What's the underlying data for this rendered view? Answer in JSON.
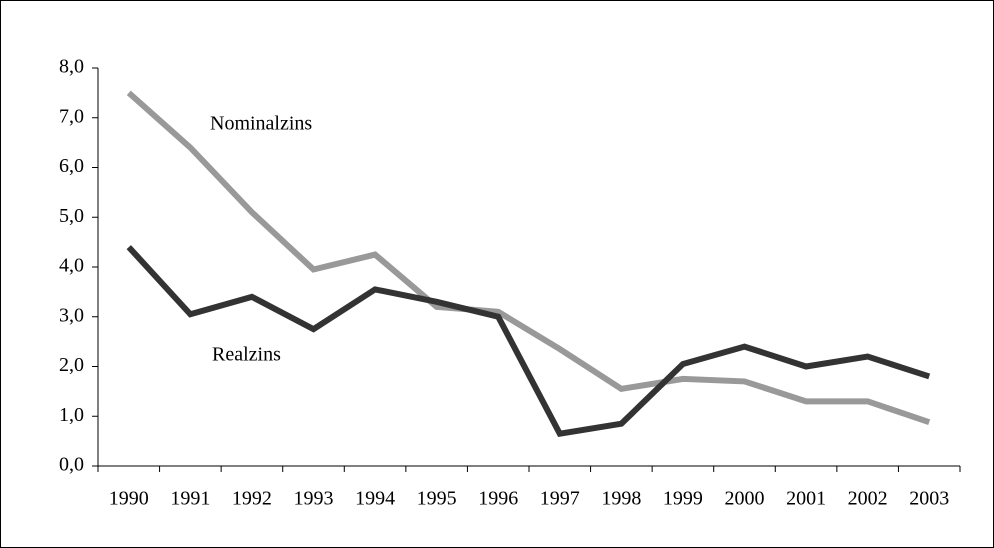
{
  "chart_data": {
    "type": "line",
    "categories": [
      "1990",
      "1991",
      "1992",
      "1993",
      "1994",
      "1995",
      "1996",
      "1997",
      "1998",
      "1999",
      "2000",
      "2001",
      "2002",
      "2003"
    ],
    "series": [
      {
        "name": "Nominalzins",
        "color": "#999999",
        "values": [
          7.5,
          6.4,
          5.1,
          3.95,
          4.25,
          3.2,
          3.1,
          2.35,
          1.55,
          1.75,
          1.7,
          1.3,
          1.3,
          0.88
        ]
      },
      {
        "name": "Realzins",
        "color": "#333333",
        "values": [
          4.4,
          3.05,
          3.4,
          2.75,
          3.55,
          3.3,
          3.0,
          0.65,
          0.85,
          2.05,
          2.4,
          2.0,
          2.2,
          1.8
        ]
      }
    ],
    "ylim": [
      0,
      8
    ],
    "yticks": [
      {
        "value": 0,
        "label": "0,0"
      },
      {
        "value": 1,
        "label": "1,0"
      },
      {
        "value": 2,
        "label": "2,0"
      },
      {
        "value": 3,
        "label": "3,0"
      },
      {
        "value": 4,
        "label": "4,0"
      },
      {
        "value": 5,
        "label": "5,0"
      },
      {
        "value": 6,
        "label": "6,0"
      },
      {
        "value": 7,
        "label": "7,0"
      },
      {
        "value": 8,
        "label": "8,0"
      }
    ],
    "grid": false
  }
}
